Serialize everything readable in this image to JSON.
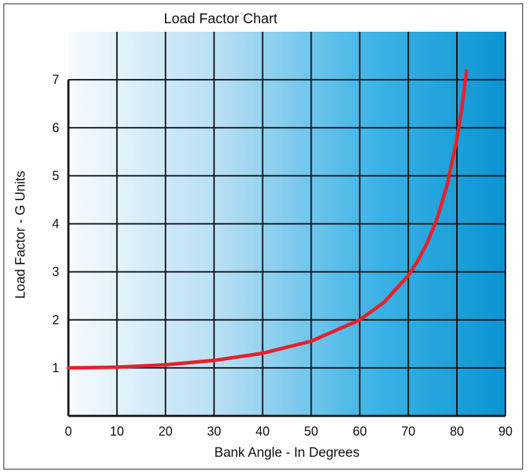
{
  "chart_data": {
    "type": "line",
    "title": "Load Factor Chart",
    "xlabel": "Bank Angle - In Degrees",
    "ylabel": "Load Factor - G Units",
    "xlim": [
      0,
      90
    ],
    "ylim": [
      0,
      8
    ],
    "x_ticks": [
      "0",
      "10",
      "20",
      "30",
      "40",
      "50",
      "60",
      "70",
      "80",
      "90"
    ],
    "y_ticks": [
      "1",
      "2",
      "3",
      "4",
      "5",
      "6",
      "7"
    ],
    "grid": true,
    "series": [
      {
        "color": "#e8202a",
        "x": [
          0,
          10,
          20,
          30,
          40,
          50,
          60,
          65,
          70,
          72,
          74,
          76,
          78,
          80,
          81,
          82
        ],
        "y": [
          1.0,
          1.015,
          1.064,
          1.155,
          1.305,
          1.556,
          2.0,
          2.366,
          2.924,
          3.236,
          3.628,
          4.134,
          4.81,
          5.759,
          6.392,
          7.185
        ]
      }
    ],
    "colors": {
      "background_start": "#f6fbfe",
      "background_end": "#0a94d2",
      "grid": "#111111",
      "curve": "#e8202a"
    }
  }
}
